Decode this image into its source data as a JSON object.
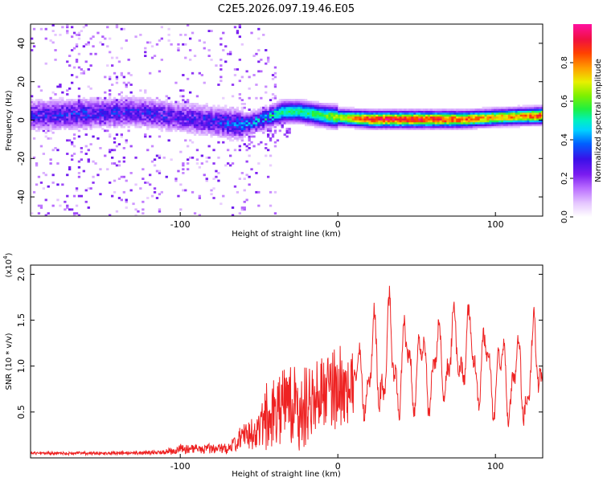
{
  "title": "C2E5.2026.097.19.46.E05",
  "colors": {
    "snr_line": "#ee2222",
    "axis": "#000000",
    "background": "#ffffff"
  },
  "colorbar": {
    "label": "Normalized spectral amplitude",
    "range": [
      0.0,
      1.0
    ],
    "ticks": [
      0.0,
      0.2,
      0.4,
      0.6,
      0.8
    ],
    "tick_labels": [
      "0.0",
      "0.2",
      "0.4",
      "0.6",
      "0.8"
    ],
    "colormap": "rainbow (white-violet-purple-blue-cyan-green-yellow-orange-red-magenta)"
  },
  "chart_data": [
    {
      "type": "heatmap",
      "name": "spectrogram",
      "xlabel": "Height of straight line (km)",
      "ylabel": "Frequency (Hz)",
      "xlim": [
        -195,
        130
      ],
      "ylim": [
        -50,
        50
      ],
      "xticks": [
        -100,
        0,
        100
      ],
      "xtick_labels": [
        "-100",
        "0",
        "100"
      ],
      "yticks": [
        -40,
        -20,
        0,
        20,
        40
      ],
      "ytick_labels": [
        "-40",
        "-20",
        "0",
        "20",
        "40"
      ],
      "ridge": {
        "x": [
          -195,
          -160,
          -130,
          -100,
          -80,
          -60,
          -45,
          -35,
          -25,
          -10,
          0,
          20,
          50,
          80,
          100,
          130
        ],
        "frequency": [
          2,
          3,
          4,
          1,
          -1,
          -3,
          1,
          4,
          4,
          2,
          1,
          0,
          0,
          0,
          1,
          2
        ],
        "peak_amplitude": [
          0.32,
          0.35,
          0.33,
          0.3,
          0.35,
          0.42,
          0.5,
          0.55,
          0.55,
          0.6,
          0.7,
          0.95,
          0.95,
          0.88,
          0.78,
          0.9
        ]
      }
    },
    {
      "type": "line",
      "name": "snr",
      "xlabel": "Height of straight line (km)",
      "ylabel": "SNR (10 * v/v)",
      "y_multiplier": "(x10",
      "y_multiplier_exp": "4",
      "xlim": [
        -195,
        130
      ],
      "ylim": [
        0,
        2.1
      ],
      "xticks": [
        -100,
        0,
        100
      ],
      "xtick_labels": [
        "-100",
        "0",
        "100"
      ],
      "yticks": [
        0.5,
        1.0,
        1.5,
        2.0
      ],
      "ytick_labels": [
        "0.5",
        "1.0",
        "1.5",
        "2.0"
      ],
      "envelope": {
        "x": [
          -195,
          -150,
          -110,
          -100,
          -70,
          -60,
          -50,
          -45,
          -40,
          -30,
          -20,
          -10,
          0,
          10,
          20,
          25,
          30,
          35,
          40,
          50,
          60,
          70,
          80,
          90,
          100,
          110,
          120,
          125,
          130
        ],
        "mean": [
          0.05,
          0.05,
          0.06,
          0.1,
          0.1,
          0.25,
          0.3,
          0.4,
          0.5,
          0.55,
          0.6,
          0.7,
          0.8,
          0.8,
          0.9,
          1.0,
          1.1,
          1.05,
          1.0,
          1.0,
          0.95,
          1.1,
          1.2,
          1.0,
          0.9,
          0.85,
          0.8,
          1.0,
          1.1
        ],
        "amplitude": [
          0.02,
          0.02,
          0.03,
          0.06,
          0.06,
          0.15,
          0.25,
          0.45,
          0.55,
          0.5,
          0.55,
          0.5,
          0.5,
          0.5,
          0.6,
          0.9,
          0.9,
          0.8,
          0.7,
          0.6,
          0.6,
          0.7,
          0.65,
          0.55,
          0.6,
          0.6,
          0.65,
          0.7,
          0.7
        ]
      }
    }
  ]
}
